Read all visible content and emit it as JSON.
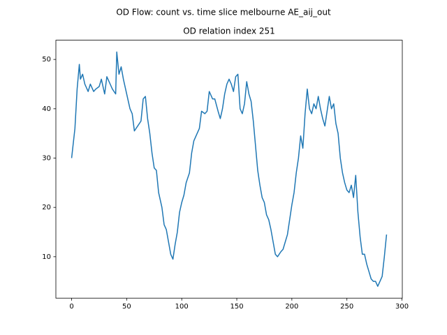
{
  "chart_data": {
    "type": "line",
    "suptitle": "OD Flow: count vs. time slice melbourne AE_aij_out",
    "title": "OD relation index 251",
    "series": [
      {
        "name": "count",
        "color": "#1f77b4",
        "x": [
          0,
          3,
          5,
          7,
          8,
          10,
          12,
          15,
          17,
          20,
          22,
          25,
          27,
          30,
          32,
          35,
          37,
          40,
          41,
          43,
          45,
          47,
          49,
          51,
          53,
          55,
          57,
          60,
          63,
          65,
          67,
          69,
          71,
          73,
          75,
          77,
          79,
          82,
          84,
          86,
          88,
          90,
          92,
          94,
          96,
          98,
          100,
          102,
          104,
          107,
          109,
          111,
          113,
          116,
          118,
          121,
          123,
          125,
          128,
          130,
          133,
          135,
          137,
          139,
          141,
          143,
          145,
          147,
          149,
          151,
          153,
          155,
          157,
          159,
          161,
          163,
          165,
          167,
          169,
          171,
          173,
          175,
          177,
          179,
          181,
          183,
          185,
          187,
          190,
          192,
          194,
          196,
          198,
          200,
          202,
          204,
          206,
          208,
          210,
          212,
          214,
          216,
          218,
          220,
          222,
          224,
          226,
          228,
          230,
          232,
          234,
          236,
          238,
          240,
          242,
          244,
          246,
          248,
          250,
          252,
          254,
          256,
          258,
          260,
          262,
          264,
          266,
          268,
          270,
          272,
          274,
          276,
          278,
          280,
          282,
          284,
          286
        ],
        "values": [
          30,
          36,
          44,
          49,
          46,
          47,
          45,
          43.5,
          45,
          43.5,
          44,
          44.5,
          46,
          43,
          46.5,
          45,
          44,
          43,
          51.5,
          47,
          48.5,
          46,
          44,
          42,
          40,
          39,
          35.5,
          36.5,
          37.5,
          42,
          42.5,
          38,
          35,
          31,
          28,
          27.5,
          23,
          20,
          16.5,
          15.5,
          13,
          10.5,
          9.5,
          12.5,
          15,
          19,
          21,
          22.5,
          25,
          27,
          31,
          33.5,
          34.5,
          36,
          39.5,
          39,
          39.5,
          43.5,
          42,
          42,
          39.5,
          38,
          40,
          43,
          45,
          46,
          45,
          43.5,
          46.5,
          47,
          40,
          39,
          41,
          45.5,
          43,
          41.5,
          37.5,
          32.5,
          27.5,
          24.5,
          22,
          21,
          18.5,
          17.5,
          15.5,
          13,
          10.5,
          10,
          11,
          11.5,
          13,
          14.5,
          17.5,
          20.5,
          23,
          27,
          30,
          34.5,
          32,
          39,
          44,
          40,
          39,
          41,
          40,
          42.5,
          40,
          38,
          36.5,
          39.5,
          42.5,
          40,
          41,
          37,
          35,
          30,
          27,
          25,
          23.5,
          23,
          24.5,
          22,
          26.5,
          19,
          14,
          10.5,
          10.5,
          8.5,
          7,
          5.5,
          5,
          5,
          4,
          5,
          6,
          10,
          14.5
        ]
      }
    ],
    "xlim": [
      -14.3,
      300.3
    ],
    "xticks": [
      0,
      50,
      100,
      150,
      200,
      250,
      300
    ],
    "ylim": [
      1.6,
      53.9
    ],
    "yticks": [
      10,
      20,
      30,
      40,
      50
    ]
  }
}
